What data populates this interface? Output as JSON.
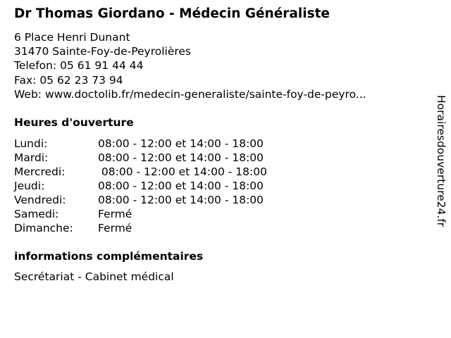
{
  "title": "Dr Thomas Giordano - Médecin Généraliste",
  "address": [
    "6 Place Henri Dunant",
    "31470 Sainte-Foy-de-Peyrolières",
    "Telefon: 05 61 91 44 44",
    "Fax: 05 62 23 73 94",
    "Web: www.doctolib.fr/medecin-generaliste/sainte-foy-de-peyro..."
  ],
  "hours_heading": "Heures d'ouverture",
  "hours": [
    {
      "day": "Lundi:",
      "time": "08:00 - 12:00 et 14:00 - 18:00"
    },
    {
      "day": "Mardi:",
      "time": "08:00 - 12:00 et 14:00 - 18:00"
    },
    {
      "day": "Mercredi:",
      "time": " 08:00 - 12:00 et 14:00 - 18:00"
    },
    {
      "day": "Jeudi:",
      "time": "08:00 - 12:00 et 14:00 - 18:00"
    },
    {
      "day": "Vendredi:",
      "time": "08:00 - 12:00 et 14:00 - 18:00"
    },
    {
      "day": "Samedi:",
      "time": "Fermé"
    },
    {
      "day": "Dimanche:",
      "time": "Fermé"
    }
  ],
  "info_heading": "informations complémentaires",
  "info_text": "Secrétariat - Cabinet médical",
  "watermark": "Horairesdouverture24.fr"
}
